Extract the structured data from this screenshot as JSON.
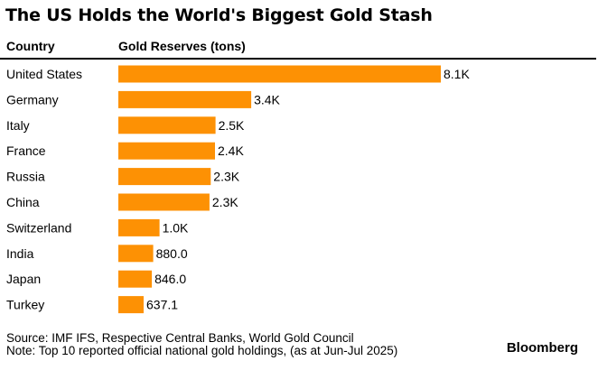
{
  "title": "The US Holds the World's Biggest Gold Stash",
  "headers": {
    "country": "Country",
    "value": "Gold Reserves (tons)"
  },
  "colors": {
    "bar": "#fd9104",
    "rule": "#000000",
    "text": "#000000"
  },
  "chart_data": {
    "type": "bar",
    "orientation": "horizontal",
    "categories": [
      "United States",
      "Germany",
      "Italy",
      "France",
      "Russia",
      "China",
      "Switzerland",
      "India",
      "Japan",
      "Turkey"
    ],
    "values": [
      8133.5,
      3350.3,
      2451.8,
      2437.0,
      2329.6,
      2298.5,
      1040.0,
      880.0,
      846.0,
      637.1
    ],
    "value_labels": [
      "8.1K",
      "3.4K",
      "2.5K",
      "2.4K",
      "2.3K",
      "2.3K",
      "1.0K",
      "880.0",
      "846.0",
      "637.1"
    ],
    "title": "The US Holds the World's Biggest Gold Stash",
    "xlabel": "Gold Reserves (tons)",
    "ylabel": "Country",
    "xlim": [
      0,
      8133.5
    ],
    "grid": false,
    "legend": "none"
  },
  "footer": {
    "source": "Source: IMF IFS, Respective Central Banks, World Gold Council",
    "note": "Note: Top 10 reported official national gold holdings, (as at Jun-Jul 2025)",
    "brand": "Bloomberg"
  }
}
